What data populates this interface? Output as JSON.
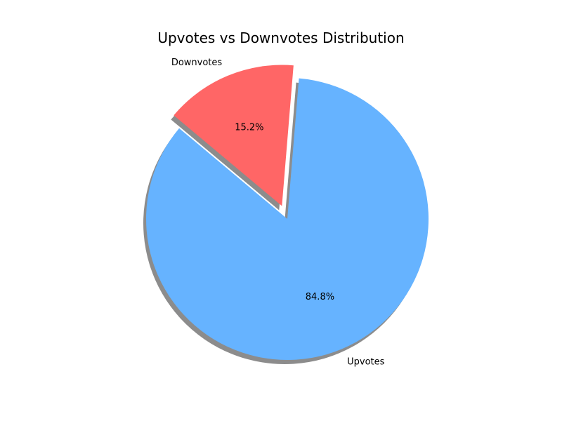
{
  "chart_data": {
    "type": "pie",
    "title": "Upvotes vs Downvotes Distribution",
    "labels": [
      "Upvotes",
      "Downvotes"
    ],
    "percent_labels": [
      "84.8%",
      "15.2%"
    ],
    "values": [
      84.8,
      15.2
    ],
    "colors": [
      "#66b3ff",
      "#ff6666"
    ],
    "exploded": [
      false,
      true
    ],
    "shadow": true
  }
}
